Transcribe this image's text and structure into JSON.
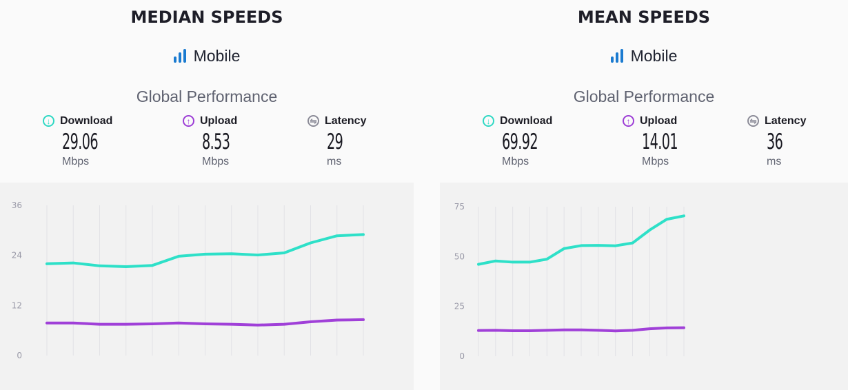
{
  "panels": [
    {
      "title": "MEDIAN SPEEDS",
      "mode": "Mobile",
      "subtitle": "Global Performance",
      "metrics": [
        {
          "label": "Download",
          "value": "29.06",
          "unit": "Mbps",
          "icon": "download-arrow-icon",
          "color": "#2fd8c4"
        },
        {
          "label": "Upload",
          "value": "8.53",
          "unit": "Mbps",
          "icon": "upload-arrow-icon",
          "color": "#9d3ed6"
        },
        {
          "label": "Latency",
          "value": "29",
          "unit": "ms",
          "icon": "latency-arrows-icon",
          "color": "#8c8c98"
        }
      ]
    },
    {
      "title": "MEAN SPEEDS",
      "mode": "Mobile",
      "subtitle": "Global Performance",
      "metrics": [
        {
          "label": "Download",
          "value": "69.92",
          "unit": "Mbps",
          "icon": "download-arrow-icon",
          "color": "#2fd8c4"
        },
        {
          "label": "Upload",
          "value": "14.01",
          "unit": "Mbps",
          "icon": "upload-arrow-icon",
          "color": "#9d3ed6"
        },
        {
          "label": "Latency",
          "value": "36",
          "unit": "ms",
          "icon": "latency-arrows-icon",
          "color": "#8c8c98"
        }
      ]
    }
  ],
  "chart_data": [
    {
      "type": "line",
      "title": "MEDIAN SPEEDS",
      "ylim": [
        0,
        36
      ],
      "yticks": [
        "0",
        "12",
        "24",
        "36"
      ],
      "x": [
        1,
        2,
        3,
        4,
        5,
        6,
        7,
        8,
        9,
        10,
        11,
        12,
        13
      ],
      "grid": "vertical",
      "series": [
        {
          "name": "Download",
          "color": "#2ee0c8",
          "values": [
            22.0,
            22.2,
            21.5,
            21.3,
            21.6,
            23.8,
            24.3,
            24.4,
            24.1,
            24.6,
            27.0,
            28.7,
            29.0
          ]
        },
        {
          "name": "Upload",
          "color": "#a040d8",
          "values": [
            7.8,
            7.8,
            7.5,
            7.5,
            7.6,
            7.8,
            7.6,
            7.5,
            7.3,
            7.5,
            8.1,
            8.5,
            8.6
          ]
        }
      ]
    },
    {
      "type": "line",
      "title": "MEAN SPEEDS",
      "ylim": [
        0,
        75
      ],
      "yticks": [
        "0",
        "25",
        "50",
        "75"
      ],
      "x": [
        1,
        2,
        3,
        4,
        5,
        6,
        7,
        8,
        9,
        10,
        11,
        12,
        13
      ],
      "grid": "vertical",
      "series": [
        {
          "name": "Download",
          "color": "#2ee0c8",
          "values": [
            46.1,
            47.8,
            47.2,
            47.2,
            48.7,
            54.0,
            55.5,
            55.6,
            55.4,
            56.8,
            63.3,
            68.7,
            70.4
          ]
        },
        {
          "name": "Upload",
          "color": "#a040d8",
          "values": [
            12.9,
            13.0,
            12.8,
            12.8,
            13.0,
            13.2,
            13.2,
            13.0,
            12.7,
            13.0,
            13.8,
            14.2,
            14.3
          ]
        }
      ]
    }
  ]
}
